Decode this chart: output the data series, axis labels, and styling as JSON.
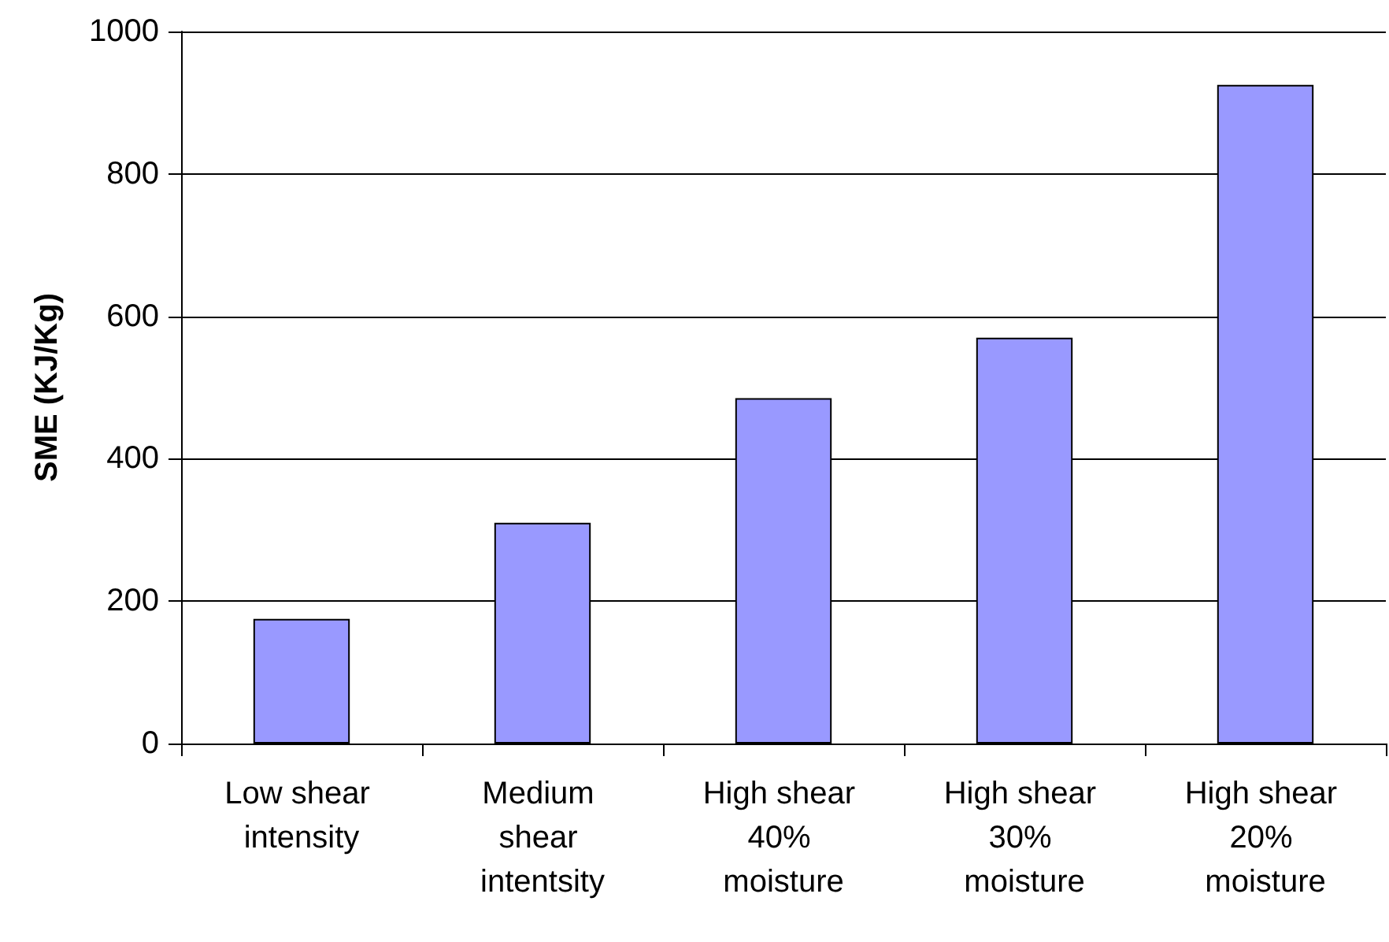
{
  "chart_data": {
    "type": "bar",
    "ylabel": "SME (KJ/Kg)",
    "categories": [
      "Low shear intensity",
      "Medium shear intentsity",
      "High shear 40% moisture",
      "High shear 30% moisture",
      "High shear 20% moisture"
    ],
    "values": [
      175,
      310,
      485,
      570,
      925
    ],
    "color": "#9999ff",
    "ylim": [
      0,
      1000
    ],
    "yticks": [
      0,
      200,
      400,
      600,
      800,
      1000
    ],
    "grid": "y"
  }
}
